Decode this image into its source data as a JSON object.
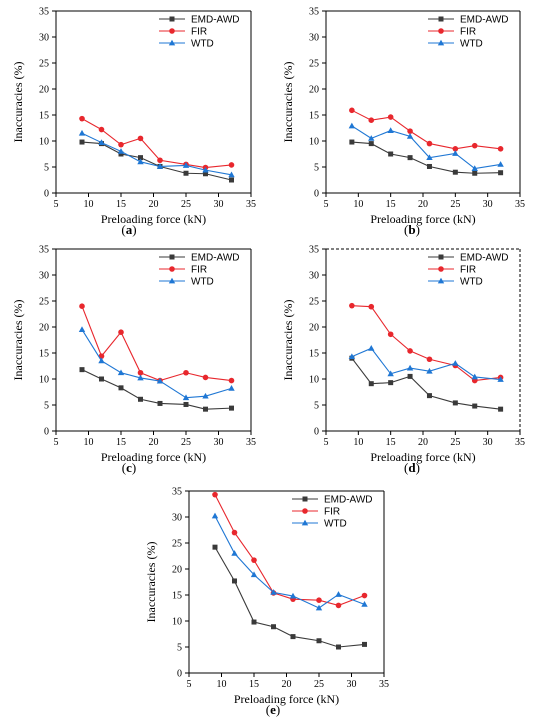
{
  "colors": {
    "EMD-AWD": "#3a3a3a",
    "FIR": "#e8272d",
    "WTD": "#1f77d4"
  },
  "chart_data": [
    {
      "type": "line",
      "panel_label": "(a)",
      "xlabel": "Preloading force (kN)",
      "ylabel": "Inaccuracies (%)",
      "xlim": [
        5,
        35
      ],
      "ylim": [
        0,
        35
      ],
      "xticks": [
        5,
        10,
        15,
        20,
        25,
        30,
        35
      ],
      "yticks": [
        0,
        5,
        10,
        15,
        20,
        25,
        30,
        35
      ],
      "legend_position": "top-right",
      "x": [
        9,
        12,
        15,
        18,
        21,
        25,
        28,
        32
      ],
      "series": [
        {
          "name": "EMD-AWD",
          "marker": "square",
          "values": [
            9.8,
            9.5,
            7.5,
            6.8,
            5.1,
            3.8,
            3.7,
            2.5
          ]
        },
        {
          "name": "FIR",
          "marker": "circle",
          "values": [
            14.3,
            12.2,
            9.3,
            10.5,
            6.3,
            5.5,
            4.9,
            5.4
          ]
        },
        {
          "name": "WTD",
          "marker": "triangle",
          "values": [
            11.5,
            9.7,
            8.0,
            6.0,
            5.1,
            5.3,
            4.4,
            3.5
          ]
        }
      ]
    },
    {
      "type": "line",
      "panel_label": "(b)",
      "xlabel": "Preloading force (kN)",
      "ylabel": "Inaccuracies (%)",
      "xlim": [
        5,
        35
      ],
      "ylim": [
        0,
        35
      ],
      "xticks": [
        5,
        10,
        15,
        20,
        25,
        30,
        35
      ],
      "yticks": [
        0,
        5,
        10,
        15,
        20,
        25,
        30,
        35
      ],
      "legend_position": "top-right",
      "x": [
        9,
        12,
        15,
        18,
        21,
        25,
        28,
        32
      ],
      "series": [
        {
          "name": "EMD-AWD",
          "marker": "square",
          "values": [
            9.8,
            9.5,
            7.5,
            6.8,
            5.1,
            4.0,
            3.8,
            3.9
          ]
        },
        {
          "name": "FIR",
          "marker": "circle",
          "values": [
            15.9,
            14.0,
            14.6,
            11.9,
            9.5,
            8.5,
            9.1,
            8.5
          ]
        },
        {
          "name": "WTD",
          "marker": "triangle",
          "values": [
            12.9,
            10.5,
            12.0,
            10.9,
            6.8,
            7.6,
            4.7,
            5.5
          ]
        }
      ]
    },
    {
      "type": "line",
      "panel_label": "(c)",
      "xlabel": "Preloading force (kN)",
      "ylabel": "Inaccuracies (%)",
      "xlim": [
        5,
        35
      ],
      "ylim": [
        0,
        35
      ],
      "xticks": [
        5,
        10,
        15,
        20,
        25,
        30,
        35
      ],
      "yticks": [
        0,
        5,
        10,
        15,
        20,
        25,
        30,
        35
      ],
      "legend_position": "top-right",
      "x": [
        9,
        12,
        15,
        18,
        21,
        25,
        28,
        32
      ],
      "series": [
        {
          "name": "EMD-AWD",
          "marker": "square",
          "values": [
            11.8,
            10.0,
            8.3,
            6.1,
            5.3,
            5.1,
            4.2,
            4.4
          ]
        },
        {
          "name": "FIR",
          "marker": "circle",
          "values": [
            24.0,
            14.4,
            19.0,
            11.2,
            9.7,
            11.2,
            10.3,
            9.7
          ]
        },
        {
          "name": "WTD",
          "marker": "triangle",
          "values": [
            19.5,
            13.5,
            11.2,
            10.2,
            9.6,
            6.4,
            6.7,
            8.2
          ]
        }
      ]
    },
    {
      "type": "line",
      "panel_label": "(d)",
      "xlabel": "Preloading force (kN)",
      "ylabel": "Inaccuracies (%)",
      "xlim": [
        5,
        35
      ],
      "ylim": [
        0,
        35
      ],
      "xticks": [
        5,
        10,
        15,
        20,
        25,
        30,
        35
      ],
      "yticks": [
        0,
        5,
        10,
        15,
        20,
        25,
        30,
        35
      ],
      "legend_position": "top-right",
      "x": [
        9,
        12,
        15,
        18,
        21,
        25,
        28,
        32
      ],
      "series": [
        {
          "name": "EMD-AWD",
          "marker": "square",
          "values": [
            14.0,
            9.1,
            9.3,
            10.5,
            6.8,
            5.4,
            4.8,
            4.2
          ]
        },
        {
          "name": "FIR",
          "marker": "circle",
          "values": [
            24.1,
            23.9,
            18.6,
            15.4,
            13.8,
            12.6,
            9.7,
            10.3
          ]
        },
        {
          "name": "WTD",
          "marker": "triangle",
          "values": [
            14.3,
            15.9,
            11.0,
            12.1,
            11.5,
            13.0,
            10.4,
            9.9
          ]
        }
      ]
    },
    {
      "type": "line",
      "panel_label": "(e)",
      "xlabel": "Preloading force (kN)",
      "ylabel": "Inaccuracies (%)",
      "xlim": [
        5,
        35
      ],
      "ylim": [
        0,
        35
      ],
      "xticks": [
        5,
        10,
        15,
        20,
        25,
        30,
        35
      ],
      "yticks": [
        0,
        5,
        10,
        15,
        20,
        25,
        30,
        35
      ],
      "legend_position": "top-right",
      "x": [
        9,
        12,
        15,
        18,
        21,
        25,
        28,
        32
      ],
      "series": [
        {
          "name": "EMD-AWD",
          "marker": "square",
          "values": [
            24.2,
            17.7,
            9.8,
            8.9,
            7.0,
            6.2,
            5.0,
            5.5
          ]
        },
        {
          "name": "FIR",
          "marker": "circle",
          "values": [
            34.3,
            27.0,
            21.7,
            15.4,
            14.2,
            14.0,
            13.0,
            14.9
          ]
        },
        {
          "name": "WTD",
          "marker": "triangle",
          "values": [
            30.2,
            23.0,
            18.9,
            15.5,
            14.8,
            12.5,
            15.1,
            13.2
          ]
        }
      ]
    }
  ]
}
